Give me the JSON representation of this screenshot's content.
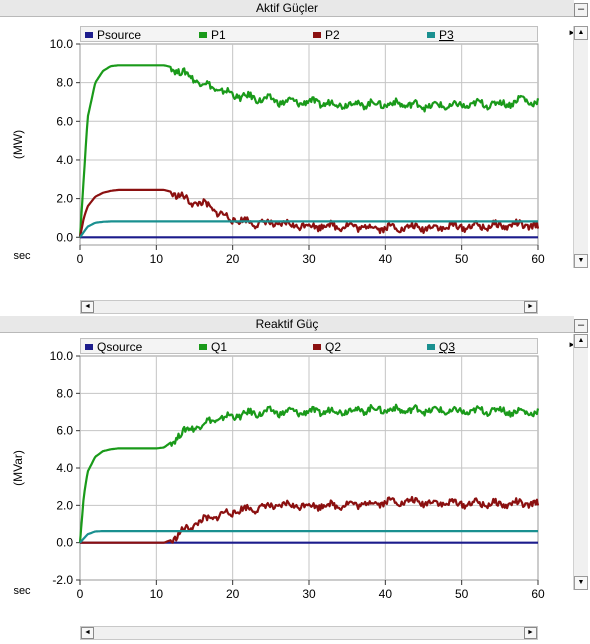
{
  "colors": {
    "Psource": "#1c1c8c",
    "P1": "#1a9a1a",
    "P2": "#8b1010",
    "P3": "#1a9090",
    "grid": "#c4c4c4",
    "plot_bg": "#ffffff"
  },
  "icons": {
    "minimize": "minimize-icon",
    "scroll_up": "up-arrow-icon",
    "scroll_down": "down-arrow-icon",
    "scroll_left": "left-arrow-icon",
    "scroll_right": "right-arrow-icon",
    "panel_menu": "right-triangle-icon"
  },
  "top": {
    "title": "Aktif Güçler",
    "minimize_label": "–",
    "xunit": "sec",
    "legend": [
      "Psource",
      "P1",
      "P2",
      "P3"
    ]
  },
  "bottom": {
    "title": "Reaktif Güç",
    "minimize_label": "–",
    "xunit": "sec",
    "legend": [
      "Qsource",
      "Q1",
      "Q2",
      "Q3"
    ]
  },
  "chart_data": [
    {
      "type": "line",
      "title": "Aktif Güçler",
      "xlabel": "sec",
      "ylabel": "(MW)",
      "xlim": [
        0,
        60
      ],
      "ylim": [
        -0.4,
        10.0
      ],
      "xticks": [
        "0",
        "10",
        "20",
        "30",
        "40",
        "50",
        "60"
      ],
      "yticks": [
        "10.0",
        "8.0",
        "6.0",
        "4.0",
        "2.0",
        "0.0"
      ],
      "grid": true,
      "legend_position": "top",
      "series": [
        {
          "name": "Psource",
          "x": [
            0,
            60
          ],
          "y": [
            0,
            0
          ]
        },
        {
          "name": "P1",
          "x": [
            0,
            1,
            2,
            3,
            4,
            5,
            8,
            11,
            12,
            13,
            15,
            17,
            19,
            21,
            23,
            25,
            27,
            30,
            33,
            36,
            39,
            42,
            45,
            48,
            50,
            52,
            55,
            57,
            58,
            59,
            60
          ],
          "y": [
            0,
            6.2,
            8.0,
            8.6,
            8.85,
            8.9,
            8.9,
            8.9,
            8.8,
            8.6,
            8.2,
            7.8,
            7.5,
            7.3,
            7.2,
            7.1,
            7.0,
            7.0,
            6.9,
            6.9,
            6.9,
            6.9,
            6.8,
            6.8,
            6.8,
            6.9,
            6.9,
            7.0,
            7.2,
            7.0,
            7.0
          ]
        },
        {
          "name": "P2",
          "x": [
            0,
            0.5,
            1,
            2,
            3,
            4,
            5,
            8,
            11,
            12,
            13,
            15,
            17,
            18,
            19,
            21,
            23,
            25,
            27,
            30,
            33,
            36,
            40,
            45,
            50,
            55,
            58,
            60
          ],
          "y": [
            0,
            1.0,
            1.6,
            2.1,
            2.3,
            2.4,
            2.45,
            2.45,
            2.45,
            2.35,
            2.1,
            1.8,
            1.6,
            1.3,
            1.05,
            0.85,
            0.75,
            0.7,
            0.65,
            0.6,
            0.6,
            0.55,
            0.5,
            0.5,
            0.55,
            0.6,
            0.65,
            0.5
          ]
        },
        {
          "name": "P3",
          "x": [
            0,
            1,
            2,
            3,
            4,
            5,
            60
          ],
          "y": [
            0,
            0.55,
            0.75,
            0.8,
            0.82,
            0.82,
            0.82
          ]
        }
      ]
    },
    {
      "type": "line",
      "title": "Reaktif Güç",
      "xlabel": "sec",
      "ylabel": "(MVar)",
      "xlim": [
        0,
        60
      ],
      "ylim": [
        -2.0,
        10.0
      ],
      "xticks": [
        "0",
        "10",
        "20",
        "30",
        "40",
        "50",
        "60"
      ],
      "yticks": [
        "10.0",
        "8.0",
        "6.0",
        "4.0",
        "2.0",
        "0.0",
        "-2.0"
      ],
      "grid": true,
      "legend_position": "top",
      "series": [
        {
          "name": "Qsource",
          "x": [
            0,
            60
          ],
          "y": [
            0,
            0
          ]
        },
        {
          "name": "Q1",
          "x": [
            0,
            0.5,
            1,
            2,
            3,
            4,
            5,
            8,
            10,
            11,
            12,
            13,
            15,
            17,
            19,
            21,
            23,
            25,
            27,
            30,
            33,
            36,
            39,
            42,
            45,
            48,
            50,
            52,
            55,
            57,
            60
          ],
          "y": [
            0,
            2.5,
            3.8,
            4.6,
            4.9,
            5.0,
            5.05,
            5.05,
            5.05,
            5.1,
            5.4,
            5.8,
            6.2,
            6.5,
            6.7,
            6.85,
            6.95,
            7.0,
            7.0,
            7.0,
            7.05,
            7.1,
            7.15,
            7.1,
            7.1,
            7.05,
            7.0,
            7.05,
            7.1,
            7.0,
            7.0
          ]
        },
        {
          "name": "Q2",
          "x": [
            0,
            11,
            12,
            13,
            14,
            15,
            17,
            19,
            21,
            24,
            27,
            30,
            33,
            36,
            38,
            40,
            43,
            46,
            50,
            53,
            55,
            57,
            60
          ],
          "y": [
            0,
            0,
            0.15,
            0.45,
            0.75,
            1.0,
            1.3,
            1.55,
            1.75,
            1.9,
            2.0,
            2.0,
            2.0,
            2.05,
            2.1,
            2.2,
            2.2,
            2.15,
            2.1,
            2.1,
            2.05,
            2.1,
            2.05
          ]
        },
        {
          "name": "Q3",
          "x": [
            0,
            1,
            2,
            3,
            4,
            60
          ],
          "y": [
            0,
            0.45,
            0.6,
            0.62,
            0.62,
            0.62
          ]
        }
      ]
    }
  ]
}
